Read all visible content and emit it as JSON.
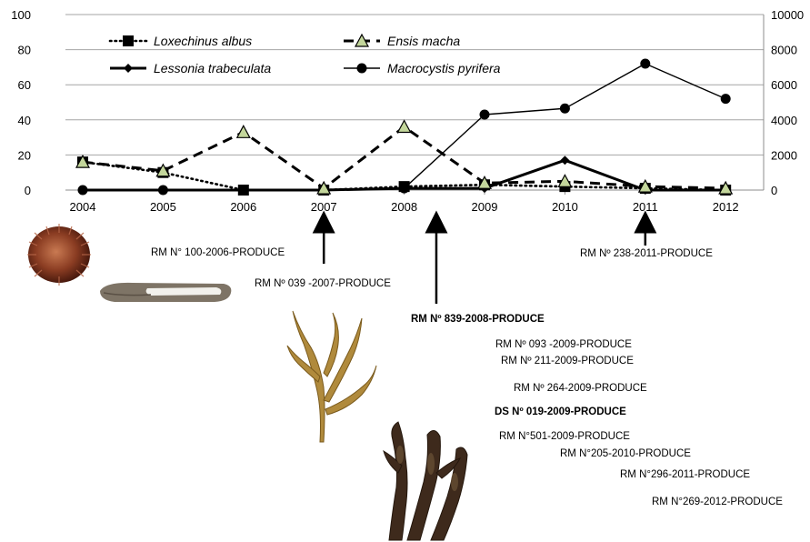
{
  "chart_data": {
    "type": "line",
    "x": [
      "2004",
      "2005",
      "2006",
      "2007",
      "2008",
      "2009",
      "2010",
      "2011",
      "2012"
    ],
    "ylim_left": [
      0,
      100
    ],
    "yticks_left": [
      "0",
      "20",
      "40",
      "60",
      "80",
      "100"
    ],
    "ylim_right": [
      0,
      10000
    ],
    "yticks_right": [
      "0",
      "2000",
      "4000",
      "6000",
      "8000",
      "10000"
    ],
    "grid": "horizontal",
    "legend_position": "top",
    "series": [
      {
        "name": "Loxechinus albus",
        "axis": "left",
        "style": "dotted",
        "marker": "square",
        "values": [
          16,
          10,
          0,
          0,
          2,
          3,
          2,
          1,
          0
        ]
      },
      {
        "name": "Ensis macha",
        "axis": "left",
        "style": "dashed",
        "marker": "triangle",
        "values": [
          16,
          11,
          33,
          1,
          36,
          4,
          5,
          2,
          1
        ]
      },
      {
        "name": "Lessonia trabeculata",
        "axis": "left",
        "style": "thick",
        "marker": "diamond",
        "values": [
          0,
          0,
          0,
          0,
          1,
          1,
          17,
          0,
          0
        ]
      },
      {
        "name": "Macrocystis pyrifera",
        "axis": "right",
        "style": "thin",
        "marker": "circle",
        "values": [
          0,
          0,
          0,
          0,
          100,
          4300,
          4650,
          7200,
          5200
        ]
      }
    ]
  },
  "annotations": {
    "a1": "RM N° 100-2006-PRODUCE",
    "a2": "RM Nº 039 -2007-PRODUCE",
    "a3": "RM Nº 839-2008-PRODUCE",
    "a4": "RM Nº 093 -2009-PRODUCE",
    "a5": "RM Nº 211-2009-PRODUCE",
    "a6": "RM Nº 264-2009-PRODUCE",
    "a7": "DS Nº 019-2009-PRODUCE",
    "a8": "RM N°501-2009-PRODUCE",
    "a9": "RM N°205-2010-PRODUCE",
    "a10": "RM N°296-2011-PRODUCE",
    "a11": "RM N°269-2012-PRODUCE",
    "a12": "RM Nº 238-2011-PRODUCE"
  },
  "arrows": [
    {
      "year": "2007"
    },
    {
      "year": "2008.4"
    },
    {
      "year": "2011"
    }
  ],
  "images": [
    {
      "name": "sea-urchin-photo"
    },
    {
      "name": "razor-clam-photo"
    },
    {
      "name": "kelp-lessonia-photo"
    },
    {
      "name": "kelp-macrocystis-photo"
    }
  ]
}
